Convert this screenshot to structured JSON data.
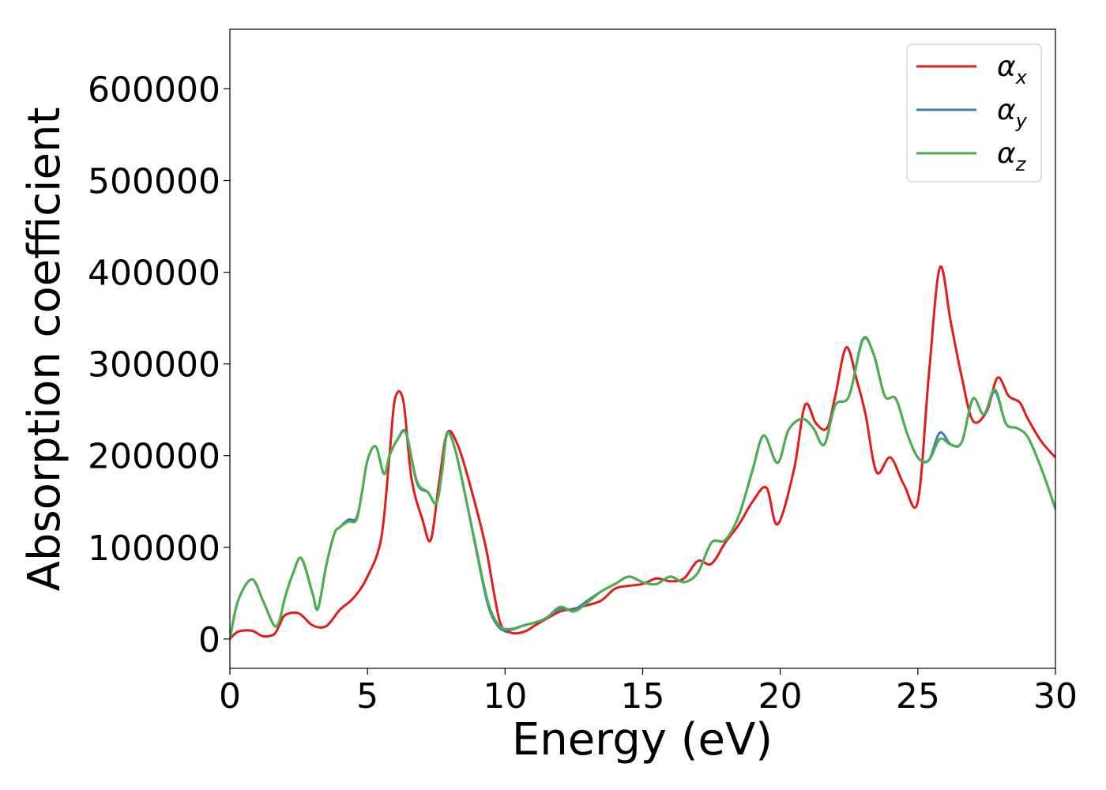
{
  "chart_data": {
    "type": "line",
    "title": "",
    "xlabel": "Energy (eV)",
    "ylabel": "Absorption coefficient",
    "xlim": [
      0,
      30
    ],
    "ylim": [
      -32000,
      665000
    ],
    "xticks": [
      0,
      5,
      10,
      15,
      20,
      25,
      30
    ],
    "yticks": [
      0,
      100000,
      200000,
      300000,
      400000,
      500000,
      600000
    ],
    "grid": false,
    "legend_position": "top-right",
    "series": [
      {
        "name": "α",
        "subscript": "x",
        "color": "#e41a1c",
        "x": [
          0,
          0.3,
          0.8,
          1.2,
          1.6,
          1.8,
          2.0,
          2.5,
          3.0,
          3.5,
          4.0,
          4.5,
          5.0,
          5.5,
          5.8,
          6.0,
          6.3,
          6.6,
          7.0,
          7.3,
          7.6,
          7.9,
          8.3,
          8.8,
          9.3,
          9.8,
          10.2,
          10.7,
          11.1,
          11.5,
          12.0,
          12.5,
          13.0,
          13.5,
          14.0,
          14.5,
          15.0,
          15.5,
          16.0,
          16.5,
          17.0,
          17.5,
          18.0,
          18.5,
          19.0,
          19.5,
          19.9,
          20.5,
          20.9,
          21.3,
          21.7,
          22.0,
          22.4,
          22.8,
          23.1,
          23.5,
          24.0,
          24.5,
          25.0,
          25.4,
          25.8,
          26.2,
          26.6,
          27.0,
          27.5,
          27.9,
          28.3,
          28.7,
          29.0,
          29.5,
          30.0
        ],
        "y": [
          0,
          8000,
          9000,
          3000,
          5000,
          15000,
          26000,
          28000,
          15000,
          14000,
          32000,
          45000,
          68000,
          110000,
          200000,
          262000,
          260000,
          175000,
          130000,
          108000,
          170000,
          225000,
          210000,
          160000,
          100000,
          20000,
          7000,
          8000,
          15000,
          22000,
          30000,
          33000,
          37000,
          42000,
          55000,
          58000,
          60000,
          66000,
          63000,
          66000,
          85000,
          82000,
          105000,
          125000,
          150000,
          165000,
          125000,
          185000,
          255000,
          235000,
          230000,
          265000,
          318000,
          280000,
          245000,
          182000,
          198000,
          168000,
          150000,
          288000,
          405000,
          345000,
          285000,
          238000,
          248000,
          285000,
          265000,
          258000,
          240000,
          215000,
          198000
        ]
      },
      {
        "name": "α",
        "subscript": "y",
        "color": "#377eb8",
        "x": [
          0,
          0.3,
          0.8,
          1.2,
          1.6,
          1.8,
          2.0,
          2.3,
          2.6,
          3.0,
          3.2,
          3.5,
          3.8,
          4.0,
          4.3,
          4.6,
          4.8,
          5.0,
          5.3,
          5.6,
          5.8,
          6.1,
          6.4,
          6.8,
          7.2,
          7.5,
          7.7,
          7.9,
          8.2,
          8.6,
          9.0,
          9.4,
          9.8,
          10.2,
          10.7,
          11.1,
          11.5,
          12.0,
          12.5,
          13.0,
          13.5,
          14.0,
          14.5,
          15.0,
          15.5,
          16.0,
          16.5,
          17.0,
          17.5,
          18.0,
          18.5,
          19.0,
          19.4,
          19.9,
          20.3,
          20.8,
          21.2,
          21.6,
          22.0,
          22.5,
          23.0,
          23.4,
          23.8,
          24.2,
          24.6,
          25.0,
          25.4,
          25.8,
          26.2,
          26.6,
          27.0,
          27.4,
          27.8,
          28.2,
          28.6,
          29.0,
          29.5,
          30.0
        ],
        "y": [
          0,
          42000,
          65000,
          42000,
          15000,
          20000,
          45000,
          72000,
          88000,
          50000,
          33000,
          80000,
          115000,
          122000,
          130000,
          132000,
          160000,
          195000,
          210000,
          180000,
          200000,
          218000,
          225000,
          170000,
          160000,
          148000,
          180000,
          225000,
          205000,
          150000,
          90000,
          35000,
          12000,
          10000,
          15000,
          18000,
          23000,
          33000,
          32000,
          42000,
          52000,
          60000,
          68000,
          62000,
          60000,
          68000,
          62000,
          72000,
          105000,
          108000,
          135000,
          185000,
          222000,
          192000,
          228000,
          240000,
          230000,
          212000,
          255000,
          265000,
          327000,
          310000,
          265000,
          262000,
          225000,
          198000,
          195000,
          225000,
          212000,
          215000,
          262000,
          245000,
          270000,
          235000,
          230000,
          220000,
          185000,
          142000
        ]
      },
      {
        "name": "α",
        "subscript": "z",
        "color": "#4daf4a",
        "x": [
          0,
          0.3,
          0.8,
          1.2,
          1.6,
          1.8,
          2.0,
          2.3,
          2.6,
          3.0,
          3.2,
          3.5,
          3.8,
          4.0,
          4.3,
          4.6,
          4.8,
          5.0,
          5.3,
          5.6,
          5.8,
          6.1,
          6.4,
          6.8,
          7.2,
          7.5,
          7.7,
          7.9,
          8.2,
          8.6,
          9.0,
          9.4,
          9.8,
          10.2,
          10.7,
          11.1,
          11.5,
          12.0,
          12.5,
          13.0,
          13.5,
          14.0,
          14.5,
          15.0,
          15.5,
          16.0,
          16.5,
          17.0,
          17.5,
          18.0,
          18.5,
          19.0,
          19.4,
          19.9,
          20.3,
          20.8,
          21.2,
          21.6,
          22.0,
          22.5,
          23.0,
          23.4,
          23.8,
          24.2,
          24.6,
          25.0,
          25.4,
          25.8,
          26.2,
          26.6,
          27.0,
          27.4,
          27.8,
          28.2,
          28.6,
          29.0,
          29.5,
          30.0
        ],
        "y": [
          0,
          42000,
          65000,
          42000,
          15000,
          20000,
          45000,
          72000,
          88000,
          50000,
          33000,
          80000,
          115000,
          122000,
          128000,
          130000,
          160000,
          195000,
          210000,
          180000,
          200000,
          218000,
          224000,
          172000,
          160000,
          148000,
          180000,
          224000,
          205000,
          150000,
          92000,
          38000,
          14000,
          11000,
          15000,
          18000,
          23000,
          35000,
          30000,
          40000,
          52000,
          60000,
          68000,
          62000,
          60000,
          68000,
          62000,
          72000,
          105000,
          108000,
          135000,
          185000,
          222000,
          192000,
          228000,
          240000,
          230000,
          212000,
          255000,
          265000,
          326000,
          310000,
          265000,
          262000,
          225000,
          198000,
          195000,
          218000,
          212000,
          215000,
          262000,
          245000,
          272000,
          235000,
          230000,
          220000,
          185000,
          142000
        ]
      }
    ]
  }
}
